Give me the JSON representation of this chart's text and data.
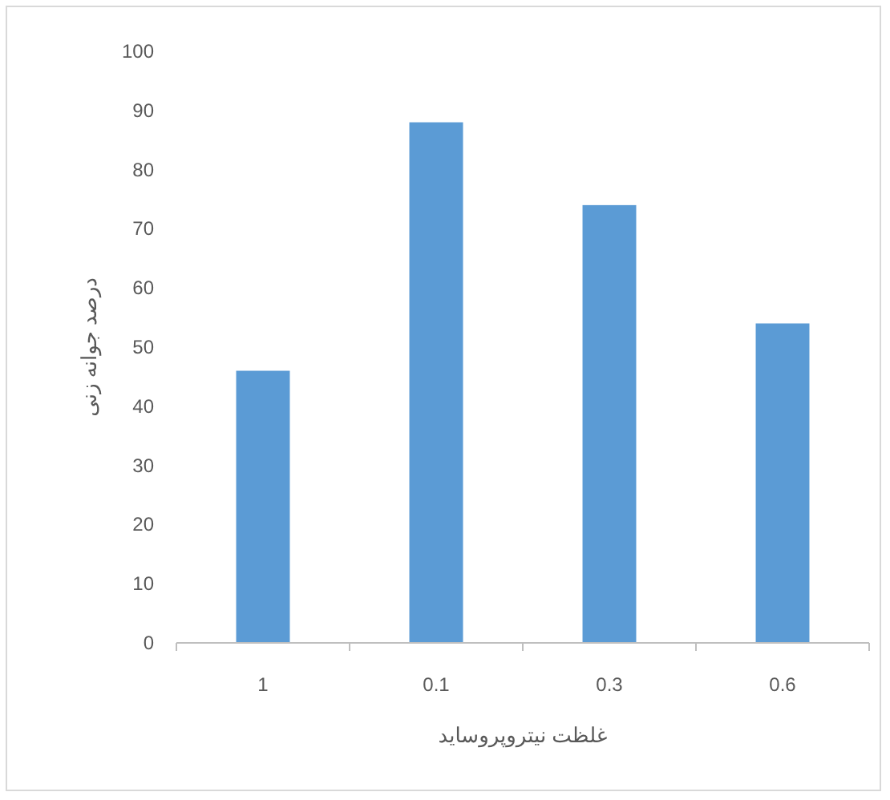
{
  "chart_data": {
    "type": "bar",
    "xlabel": "غلظت نیتروپروساید",
    "ylabel": "درصد جوانه زنی",
    "categories": [
      "1",
      "0.1",
      "0.3",
      "0.6"
    ],
    "values": [
      46,
      88,
      74,
      54
    ],
    "color": "#5b9bd5",
    "ylim": [
      0,
      100
    ],
    "yticks": [
      0,
      10,
      20,
      30,
      40,
      50,
      60,
      70,
      80,
      90,
      100
    ],
    "grid": false
  }
}
